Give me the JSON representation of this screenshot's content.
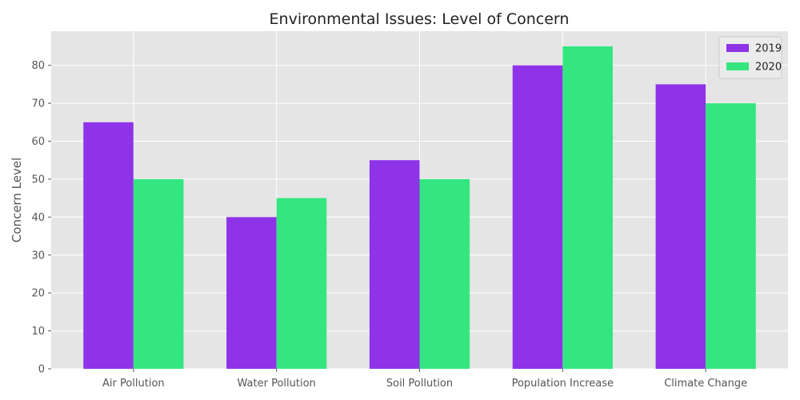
{
  "chart_data": {
    "type": "bar",
    "title": "Environmental Issues: Level of Concern",
    "xlabel": "",
    "ylabel": "Concern Level",
    "categories": [
      "Air Pollution",
      "Water Pollution",
      "Soil Pollution",
      "Population Increase",
      "Climate Change"
    ],
    "series": [
      {
        "name": "2019",
        "values": [
          65,
          40,
          55,
          80,
          75
        ],
        "color": "#8e33e8"
      },
      {
        "name": "2020",
        "values": [
          50,
          45,
          50,
          85,
          70
        ],
        "color": "#33e67f"
      }
    ],
    "ylim": [
      0,
      89
    ],
    "yticks": [
      0,
      10,
      20,
      30,
      40,
      50,
      60,
      70,
      80
    ],
    "grid": true,
    "legend_position": "top-right",
    "background_color": "#e5e5e5",
    "grid_color": "#ffffff"
  }
}
